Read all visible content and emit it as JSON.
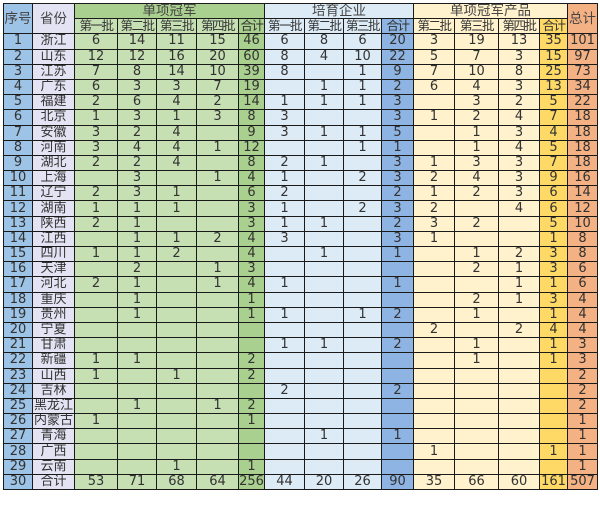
{
  "headers": {
    "seq": "序号",
    "province": "省份",
    "group_champion": "单项冠军",
    "group_cultivation": "培育企业",
    "group_product": "单项冠军产品",
    "grand_total": "总计",
    "champion_cols": [
      "第一批",
      "第二批",
      "第三批",
      "第四批",
      "合计"
    ],
    "cultivation_cols": [
      "第一批",
      "第二批",
      "第三批",
      "合计"
    ],
    "product_cols": [
      "第二批",
      "第三批",
      "第四批",
      "合计"
    ]
  },
  "colors": {
    "seq": "#9dc3e6",
    "province": "#e4e3f3",
    "champion": "#c6e0b4",
    "champion_total": "#a9d08e",
    "cultivation": "#ddebf7",
    "cultivation_total": "#8db4e2",
    "product": "#fff2cc",
    "product_total": "#ffd966",
    "grand_total": "#f4b183"
  },
  "rows": [
    [
      "1",
      "浙江",
      "6",
      "14",
      "11",
      "15",
      "46",
      "6",
      "8",
      "6",
      "20",
      "3",
      "19",
      "13",
      "35",
      "101"
    ],
    [
      "2",
      "山东",
      "12",
      "12",
      "16",
      "20",
      "60",
      "8",
      "4",
      "10",
      "22",
      "5",
      "7",
      "3",
      "15",
      "97"
    ],
    [
      "3",
      "江苏",
      "7",
      "8",
      "14",
      "10",
      "39",
      "8",
      "",
      "1",
      "9",
      "7",
      "10",
      "8",
      "25",
      "73"
    ],
    [
      "4",
      "广东",
      "6",
      "3",
      "3",
      "7",
      "19",
      "",
      "1",
      "1",
      "2",
      "6",
      "4",
      "3",
      "13",
      "34"
    ],
    [
      "5",
      "福建",
      "2",
      "6",
      "4",
      "2",
      "14",
      "1",
      "1",
      "1",
      "3",
      "",
      "3",
      "2",
      "5",
      "22"
    ],
    [
      "6",
      "北京",
      "1",
      "3",
      "1",
      "3",
      "8",
      "3",
      "",
      "",
      "3",
      "1",
      "2",
      "4",
      "7",
      "18"
    ],
    [
      "7",
      "安徽",
      "3",
      "2",
      "4",
      "",
      "9",
      "3",
      "1",
      "1",
      "5",
      "",
      "1",
      "3",
      "4",
      "18"
    ],
    [
      "8",
      "河南",
      "3",
      "4",
      "4",
      "1",
      "12",
      "",
      "",
      "1",
      "1",
      "",
      "1",
      "4",
      "5",
      "18"
    ],
    [
      "9",
      "湖北",
      "2",
      "2",
      "4",
      "",
      "8",
      "2",
      "1",
      "",
      "3",
      "1",
      "3",
      "3",
      "7",
      "18"
    ],
    [
      "10",
      "上海",
      "",
      "3",
      "",
      "1",
      "4",
      "1",
      "",
      "2",
      "3",
      "2",
      "4",
      "3",
      "9",
      "16"
    ],
    [
      "11",
      "辽宁",
      "2",
      "3",
      "1",
      "",
      "6",
      "2",
      "",
      "",
      "2",
      "1",
      "2",
      "3",
      "6",
      "14"
    ],
    [
      "12",
      "湖南",
      "1",
      "1",
      "1",
      "",
      "3",
      "1",
      "",
      "2",
      "3",
      "2",
      "",
      "4",
      "6",
      "12"
    ],
    [
      "13",
      "陕西",
      "2",
      "1",
      "",
      "",
      "3",
      "1",
      "1",
      "",
      "2",
      "3",
      "2",
      "",
      "5",
      "10"
    ],
    [
      "14",
      "江西",
      "",
      "1",
      "1",
      "2",
      "4",
      "3",
      "",
      "",
      "3",
      "1",
      "",
      "",
      "1",
      "8"
    ],
    [
      "15",
      "四川",
      "1",
      "1",
      "2",
      "",
      "4",
      "",
      "1",
      "",
      "1",
      "",
      "1",
      "2",
      "3",
      "8"
    ],
    [
      "16",
      "天津",
      "",
      "2",
      "",
      "1",
      "3",
      "",
      "",
      "",
      "",
      "",
      "2",
      "1",
      "3",
      "6"
    ],
    [
      "17",
      "河北",
      "2",
      "1",
      "",
      "1",
      "4",
      "1",
      "",
      "",
      "1",
      "",
      "",
      "1",
      "1",
      "6"
    ],
    [
      "18",
      "重庆",
      "",
      "1",
      "",
      "",
      "1",
      "",
      "",
      "",
      "",
      "",
      "2",
      "1",
      "3",
      "4"
    ],
    [
      "19",
      "贵州",
      "",
      "1",
      "",
      "",
      "1",
      "1",
      "",
      "1",
      "2",
      "",
      "1",
      "",
      "1",
      "4"
    ],
    [
      "20",
      "宁夏",
      "",
      "",
      "",
      "",
      "",
      "",
      "",
      "",
      "",
      "2",
      "",
      "2",
      "4",
      "4"
    ],
    [
      "21",
      "甘肃",
      "",
      "",
      "",
      "",
      "",
      "1",
      "1",
      "",
      "2",
      "",
      "1",
      "",
      "1",
      "3"
    ],
    [
      "22",
      "新疆",
      "1",
      "1",
      "",
      "",
      "2",
      "",
      "",
      "",
      "",
      "",
      "1",
      "",
      "1",
      "3"
    ],
    [
      "23",
      "山西",
      "1",
      "",
      "1",
      "",
      "2",
      "",
      "",
      "",
      "",
      "",
      "",
      "",
      "",
      "2"
    ],
    [
      "24",
      "吉林",
      "",
      "",
      "",
      "",
      "",
      "2",
      "",
      "",
      "2",
      "",
      "",
      "",
      "",
      "2"
    ],
    [
      "25",
      "黑龙江",
      "",
      "1",
      "",
      "1",
      "2",
      "",
      "",
      "",
      "",
      "",
      "",
      "",
      "",
      "2"
    ],
    [
      "26",
      "内蒙古",
      "1",
      "",
      "",
      "",
      "1",
      "",
      "",
      "",
      "",
      "",
      "",
      "",
      "",
      "1"
    ],
    [
      "27",
      "青海",
      "",
      "",
      "",
      "",
      "",
      "",
      "1",
      "",
      "1",
      "",
      "",
      "",
      "",
      "1"
    ],
    [
      "28",
      "广西",
      "",
      "",
      "",
      "",
      "",
      "",
      "",
      "",
      "",
      "1",
      "",
      "",
      "1",
      "1"
    ],
    [
      "29",
      "云南",
      "",
      "",
      "1",
      "",
      "1",
      "",
      "",
      "",
      "",
      "",
      "",
      "",
      "",
      "1"
    ],
    [
      "30",
      "合计",
      "53",
      "71",
      "68",
      "64",
      "256",
      "44",
      "20",
      "26",
      "90",
      "35",
      "66",
      "60",
      "161",
      "507"
    ]
  ]
}
